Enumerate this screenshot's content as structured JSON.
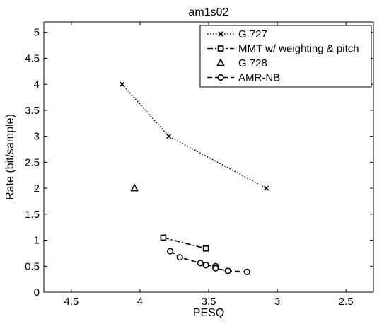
{
  "chart_data": {
    "type": "line",
    "title": "am1s02",
    "xlabel": "PESQ",
    "ylabel": "Rate (bit/sample)",
    "x_reversed": true,
    "xlim": [
      2.3,
      4.7
    ],
    "ylim": [
      0,
      5.2
    ],
    "xticks": [
      4.5,
      4,
      3.5,
      3,
      2.5
    ],
    "xtick_labels": [
      "4.5",
      "4",
      "3.5",
      "3",
      "2.5"
    ],
    "yticks": [
      0,
      0.5,
      1,
      1.5,
      2,
      2.5,
      3,
      3.5,
      4,
      4.5,
      5
    ],
    "ytick_labels": [
      "0",
      "0.5",
      "1",
      "1.5",
      "2",
      "2.5",
      "3",
      "3.5",
      "4",
      "4.5",
      "5"
    ],
    "grid": false,
    "legend_position": "top-right",
    "series": [
      {
        "name": "G.727",
        "line_style": "dotted",
        "marker": "x",
        "points": [
          [
            4.13,
            4.0
          ],
          [
            3.79,
            3.0
          ],
          [
            3.08,
            2.0
          ]
        ]
      },
      {
        "name": "MMT w/ weighting & pitch",
        "line_style": "dashdot",
        "marker": "square",
        "points": [
          [
            3.83,
            1.05
          ],
          [
            3.52,
            0.84
          ]
        ]
      },
      {
        "name": "G.728",
        "line_style": "none",
        "marker": "triangle",
        "points": [
          [
            4.04,
            2.0
          ]
        ]
      },
      {
        "name": "AMR-NB",
        "line_style": "dashed",
        "marker": "circle",
        "points": [
          [
            3.78,
            0.79
          ],
          [
            3.71,
            0.67
          ],
          [
            3.56,
            0.56
          ],
          [
            3.52,
            0.52
          ],
          [
            3.45,
            0.5
          ],
          [
            3.45,
            0.46
          ],
          [
            3.36,
            0.41
          ],
          [
            3.22,
            0.39
          ]
        ]
      }
    ]
  }
}
